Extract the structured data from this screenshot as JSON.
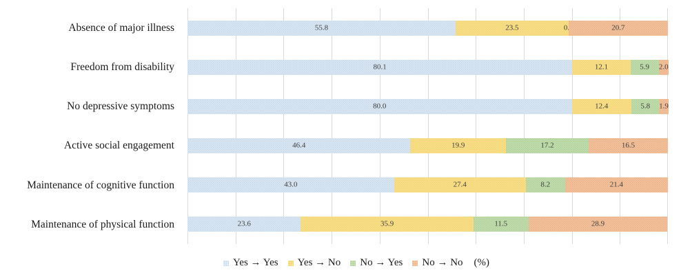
{
  "chart_data": {
    "type": "bar",
    "orientation": "horizontal",
    "stacked": true,
    "unit": "%",
    "xlim": [
      0,
      100
    ],
    "gridline_step_pct": 10,
    "grid": true,
    "title": "",
    "xlabel": "",
    "ylabel": "",
    "categories": [
      "Absence of major illness",
      "Freedom from disability",
      "No depressive symptoms",
      "Active social engagement",
      "Maintenance of cognitive function",
      "Maintenance of physical function"
    ],
    "series": [
      {
        "name": "Yes → Yes",
        "color": "#dfeaf5",
        "dot_color": "#c2d6e8",
        "values": [
          55.8,
          80.1,
          80.0,
          46.4,
          43.0,
          23.6
        ]
      },
      {
        "name": "Yes → No",
        "color": "#fbe28b",
        "dot_color": "#eed172",
        "values": [
          23.5,
          12.1,
          12.4,
          19.9,
          27.4,
          35.9
        ]
      },
      {
        "name": "No → Yes",
        "color": "#c6e0b4",
        "dot_color": "#aacd93",
        "values": [
          0.0,
          5.9,
          5.8,
          17.2,
          8.2,
          11.5
        ]
      },
      {
        "name": "No → No",
        "color": "#f6c7a3",
        "dot_color": "#e6ad82",
        "values": [
          20.7,
          2.0,
          1.9,
          16.5,
          21.4,
          28.9
        ]
      }
    ],
    "legend": {
      "position": "bottom",
      "suffix": "(%)"
    },
    "colors": {
      "gridline": "#d9dbd9",
      "category_label": "#1a1a1a",
      "value_label": "#404040"
    }
  }
}
